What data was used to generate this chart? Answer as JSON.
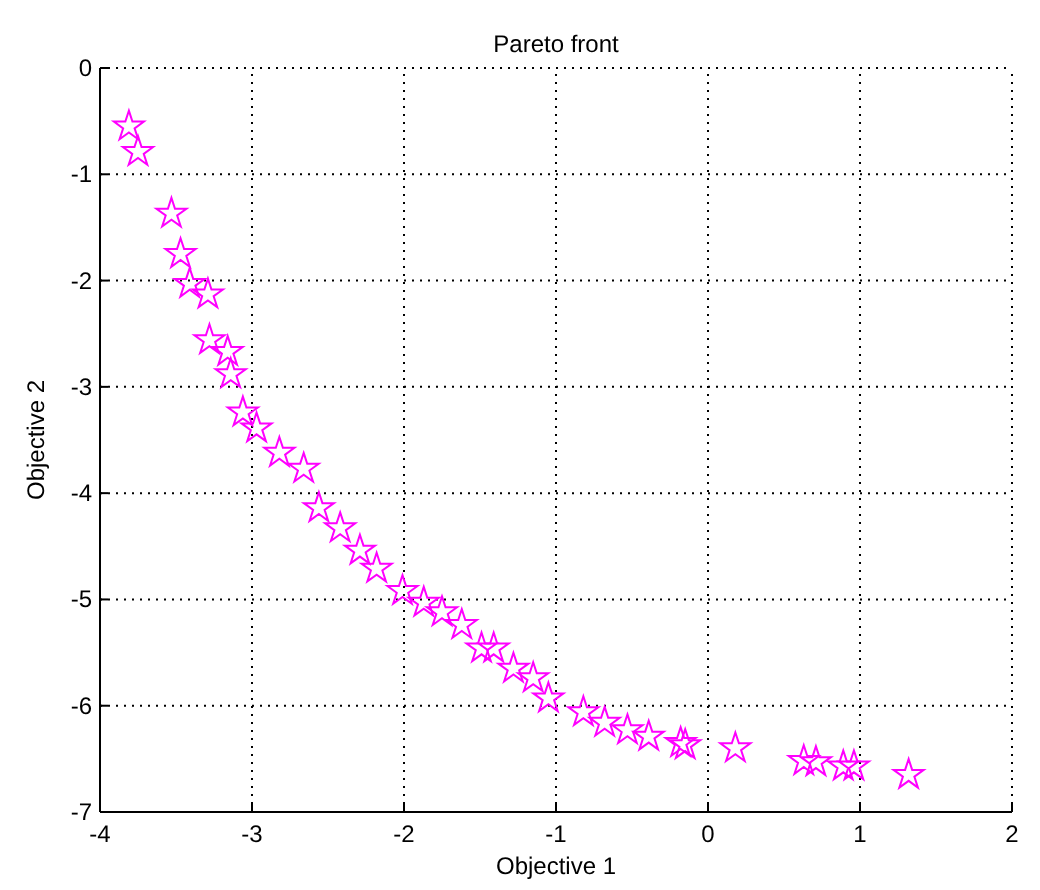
{
  "chart_data": {
    "type": "scatter",
    "title": "Pareto front",
    "xlabel": "Objective 1",
    "ylabel": "Objective 2",
    "x": [
      -3.81,
      -3.75,
      -3.53,
      -3.47,
      -3.41,
      -3.29,
      -3.28,
      -3.16,
      -3.14,
      -3.06,
      -2.97,
      -2.82,
      -2.66,
      -2.56,
      -2.42,
      -2.29,
      -2.18,
      -2.01,
      -1.87,
      -1.75,
      -1.62,
      -1.49,
      -1.41,
      -1.28,
      -1.15,
      -1.05,
      -0.82,
      -0.68,
      -0.53,
      -0.39,
      -0.18,
      -0.15,
      0.18,
      0.63,
      0.71,
      0.89,
      0.96,
      1.32
    ],
    "values": [
      -0.55,
      -0.79,
      -1.37,
      -1.75,
      -2.03,
      -2.13,
      -2.56,
      -2.67,
      -2.88,
      -3.24,
      -3.39,
      -3.62,
      -3.77,
      -4.14,
      -4.33,
      -4.54,
      -4.71,
      -4.92,
      -5.03,
      -5.12,
      -5.24,
      -5.46,
      -5.46,
      -5.65,
      -5.74,
      -5.93,
      -6.06,
      -6.16,
      -6.23,
      -6.29,
      -6.35,
      -6.37,
      -6.4,
      -6.52,
      -6.53,
      -6.57,
      -6.57,
      -6.65
    ],
    "color": "#ff00ff",
    "marker": "star",
    "grid": true,
    "xlim": [
      -4,
      2
    ],
    "xticks": [
      -4,
      -3,
      -2,
      -1,
      0,
      1,
      2
    ],
    "ylim": [
      -7,
      0
    ],
    "yticks": [
      -7,
      -6,
      -5,
      -4,
      -3,
      -2,
      -1,
      0
    ]
  }
}
